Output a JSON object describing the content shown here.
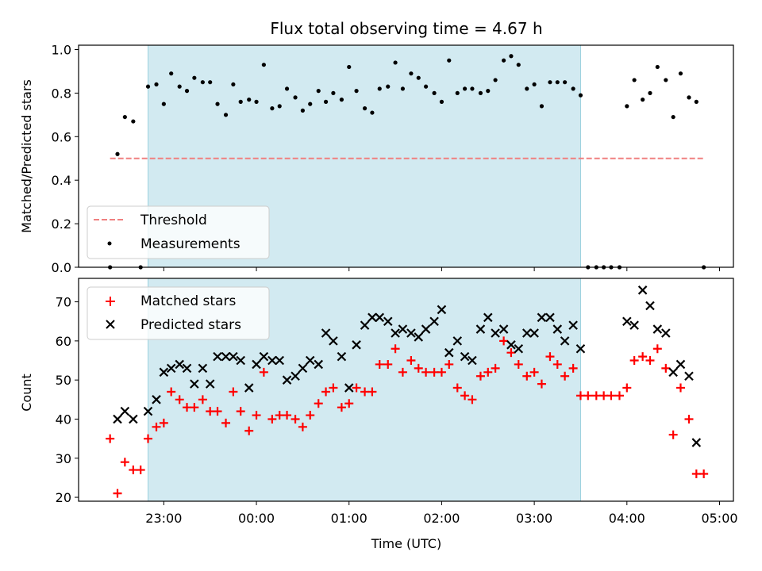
{
  "figure": {
    "title": "Flux total observing time = 4.67 h"
  },
  "colors": {
    "observing_window": "#add8e6",
    "threshold": "#f08080",
    "measurements": "#000000",
    "matched": "#ff0000",
    "predicted": "#000000"
  },
  "chart_data": [
    {
      "type": "scatter",
      "panel": "top",
      "ylabel": "Matched/Predicted stars",
      "xlabel": "",
      "x_unit": "hours after 00:00 UTC",
      "xlim": [
        -1.92,
        5.15
      ],
      "ylim": [
        0.0,
        1.02
      ],
      "yticks": [
        0.0,
        0.2,
        0.4,
        0.6,
        0.8,
        1.0
      ],
      "ytick_labels": [
        "0.0",
        "0.2",
        "0.4",
        "0.6",
        "0.8",
        "1.0"
      ],
      "shaded_interval": [
        -1.17,
        3.5
      ],
      "legend": {
        "position": "lower-left",
        "entries": [
          "Threshold",
          "Measurements"
        ]
      },
      "threshold": {
        "name": "Threshold",
        "value": 0.5,
        "x_range": [
          -1.58,
          4.83
        ],
        "style": "dashed"
      },
      "series": [
        {
          "name": "Measurements",
          "marker": "dot",
          "x": [
            -1.58,
            -1.5,
            -1.42,
            -1.33,
            -1.25,
            -1.17,
            -1.08,
            -1.0,
            -0.92,
            -0.83,
            -0.75,
            -0.67,
            -0.58,
            -0.5,
            -0.42,
            -0.33,
            -0.25,
            -0.17,
            -0.08,
            0.0,
            0.08,
            0.17,
            0.25,
            0.33,
            0.42,
            0.5,
            0.58,
            0.67,
            0.75,
            0.83,
            0.92,
            1.0,
            1.08,
            1.17,
            1.25,
            1.33,
            1.42,
            1.5,
            1.58,
            1.67,
            1.75,
            1.83,
            1.92,
            2.0,
            2.08,
            2.17,
            2.25,
            2.33,
            2.42,
            2.5,
            2.58,
            2.67,
            2.75,
            2.83,
            2.92,
            3.0,
            3.08,
            3.17,
            3.25,
            3.33,
            3.42,
            3.5,
            3.58,
            3.67,
            3.75,
            3.83,
            3.92,
            4.0,
            4.08,
            4.17,
            4.25,
            4.33,
            4.42,
            4.5,
            4.58,
            4.67,
            4.75,
            4.83
          ],
          "y": [
            0.0,
            0.52,
            0.69,
            0.67,
            0.0,
            0.83,
            0.84,
            0.75,
            0.89,
            0.83,
            0.81,
            0.87,
            0.85,
            0.85,
            0.75,
            0.7,
            0.84,
            0.76,
            0.77,
            0.76,
            0.93,
            0.73,
            0.74,
            0.82,
            0.78,
            0.72,
            0.75,
            0.81,
            0.76,
            0.8,
            0.77,
            0.92,
            0.81,
            0.73,
            0.71,
            0.82,
            0.83,
            0.94,
            0.82,
            0.89,
            0.87,
            0.83,
            0.8,
            0.76,
            0.95,
            0.8,
            0.82,
            0.82,
            0.8,
            0.81,
            0.86,
            0.95,
            0.97,
            0.93,
            0.82,
            0.84,
            0.74,
            0.85,
            0.85,
            0.85,
            0.82,
            0.79,
            0.0,
            0.0,
            0.0,
            0.0,
            0.0,
            0.74,
            0.86,
            0.77,
            0.8,
            0.92,
            0.86,
            0.69,
            0.89,
            0.78,
            0.76,
            0.0
          ]
        }
      ]
    },
    {
      "type": "scatter",
      "panel": "bottom",
      "xlabel": "Time (UTC)",
      "ylabel": "Count",
      "x_unit": "hours after 00:00 UTC",
      "xlim": [
        -1.92,
        5.15
      ],
      "ylim": [
        19,
        76
      ],
      "yticks": [
        20,
        30,
        40,
        50,
        60,
        70
      ],
      "ytick_labels": [
        "20",
        "30",
        "40",
        "50",
        "60",
        "70"
      ],
      "xticks": [
        -1,
        0,
        1,
        2,
        3,
        4,
        5
      ],
      "xtick_labels": [
        "23:00",
        "00:00",
        "01:00",
        "02:00",
        "03:00",
        "04:00",
        "05:00"
      ],
      "shaded_interval": [
        -1.17,
        3.5
      ],
      "legend": {
        "position": "upper-left",
        "entries": [
          "Matched stars",
          "Predicted stars"
        ]
      },
      "series": [
        {
          "name": "Matched stars",
          "marker": "plus",
          "x": [
            -1.58,
            -1.5,
            -1.42,
            -1.33,
            -1.25,
            -1.17,
            -1.08,
            -1.0,
            -0.92,
            -0.83,
            -0.75,
            -0.67,
            -0.58,
            -0.5,
            -0.42,
            -0.33,
            -0.25,
            -0.17,
            -0.08,
            0.0,
            0.08,
            0.17,
            0.25,
            0.33,
            0.42,
            0.5,
            0.58,
            0.67,
            0.75,
            0.83,
            0.92,
            1.0,
            1.08,
            1.17,
            1.25,
            1.33,
            1.42,
            1.5,
            1.58,
            1.67,
            1.75,
            1.83,
            1.92,
            2.0,
            2.08,
            2.17,
            2.25,
            2.33,
            2.42,
            2.5,
            2.58,
            2.67,
            2.75,
            2.83,
            2.92,
            3.0,
            3.08,
            3.17,
            3.25,
            3.33,
            3.42,
            3.5,
            3.58,
            3.67,
            3.75,
            3.83,
            3.92,
            4.0,
            4.08,
            4.17,
            4.25,
            4.33,
            4.42,
            4.5,
            4.58,
            4.67,
            4.75,
            4.83
          ],
          "y": [
            35,
            21,
            29,
            27,
            27,
            35,
            38,
            39,
            47,
            45,
            43,
            43,
            45,
            42,
            42,
            39,
            47,
            42,
            37,
            41,
            52,
            40,
            41,
            41,
            40,
            38,
            41,
            44,
            47,
            48,
            43,
            44,
            48,
            47,
            47,
            54,
            54,
            58,
            52,
            55,
            53,
            52,
            52,
            52,
            54,
            48,
            46,
            45,
            51,
            52,
            53,
            60,
            57,
            54,
            51,
            52,
            49,
            56,
            54,
            51,
            53,
            46,
            46,
            46,
            46,
            46,
            46,
            48,
            55,
            56,
            55,
            58,
            53,
            36,
            48,
            40,
            26,
            26
          ]
        },
        {
          "name": "Predicted stars",
          "marker": "x",
          "x": [
            -1.5,
            -1.42,
            -1.33,
            -1.17,
            -1.08,
            -1.0,
            -0.92,
            -0.83,
            -0.75,
            -0.67,
            -0.58,
            -0.5,
            -0.42,
            -0.33,
            -0.25,
            -0.17,
            -0.08,
            0.0,
            0.08,
            0.17,
            0.25,
            0.33,
            0.42,
            0.5,
            0.58,
            0.67,
            0.75,
            0.83,
            0.92,
            1.0,
            1.08,
            1.17,
            1.25,
            1.33,
            1.42,
            1.5,
            1.58,
            1.67,
            1.75,
            1.83,
            1.92,
            2.0,
            2.08,
            2.17,
            2.25,
            2.33,
            2.42,
            2.5,
            2.58,
            2.67,
            2.75,
            2.83,
            2.92,
            3.0,
            3.08,
            3.17,
            3.25,
            3.33,
            3.42,
            3.5,
            4.0,
            4.08,
            4.17,
            4.25,
            4.33,
            4.42,
            4.5,
            4.58,
            4.67,
            4.75
          ],
          "y": [
            40,
            42,
            40,
            42,
            45,
            52,
            53,
            54,
            53,
            49,
            53,
            49,
            56,
            56,
            56,
            55,
            48,
            54,
            56,
            55,
            55,
            50,
            51,
            53,
            55,
            54,
            62,
            60,
            56,
            48,
            59,
            64,
            66,
            66,
            65,
            62,
            63,
            62,
            61,
            63,
            65,
            68,
            57,
            60,
            56,
            55,
            63,
            66,
            62,
            63,
            59,
            58,
            62,
            62,
            66,
            66,
            63,
            60,
            64,
            58,
            65,
            64,
            73,
            69,
            63,
            62,
            52,
            54,
            51,
            34
          ]
        }
      ]
    }
  ]
}
